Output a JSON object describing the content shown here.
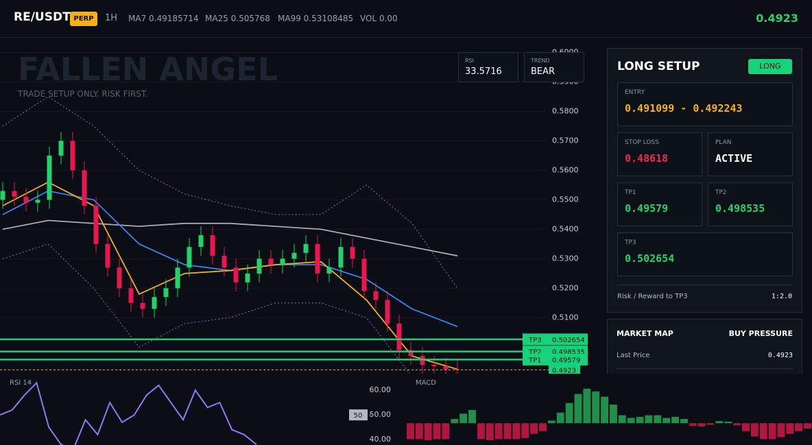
{
  "header": {
    "symbol": "RE/USDT",
    "badge": "PERP",
    "interval": "1H",
    "ma7": "MA7 0.49185714",
    "ma25": "MA25 0.505768",
    "ma99": "MA99 0.53108485",
    "volume": "VOL 0.00",
    "price": "0.4923"
  },
  "watermark": {
    "title": "FALLEN ANGEL",
    "subtitle": "TRADE SETUP ONLY. RISK FIRST."
  },
  "stats": [
    {
      "label": "RSI",
      "value": "33.5716"
    },
    {
      "label": "TREND",
      "value": "BEAR"
    }
  ],
  "chart_data": [
    {
      "type": "candlestick",
      "categories": [
        null,
        null,
        null,
        null,
        null,
        null,
        null,
        null,
        null,
        null,
        null,
        null,
        null,
        null,
        null,
        null,
        null,
        null,
        null,
        null,
        null,
        null,
        null,
        null,
        null,
        null,
        null,
        null,
        null,
        null,
        null,
        null,
        null,
        null,
        null,
        null,
        null,
        null,
        null,
        null
      ],
      "open": [
        0.55,
        0.553,
        0.551,
        0.549,
        0.55,
        0.565,
        0.57,
        0.56,
        0.548,
        0.535,
        0.527,
        0.52,
        0.515,
        0.513,
        0.517,
        0.52,
        0.527,
        0.534,
        0.538,
        0.531,
        0.527,
        0.522,
        0.525,
        0.53,
        0.528,
        0.53,
        0.532,
        0.535,
        0.525,
        0.527,
        0.534,
        0.53,
        0.519,
        0.516,
        0.508,
        0.499,
        0.497,
        0.494,
        0.4935,
        0.4925
      ],
      "high": [
        0.556,
        0.556,
        0.554,
        0.553,
        0.568,
        0.573,
        0.573,
        0.563,
        0.551,
        0.538,
        0.53,
        0.523,
        0.518,
        0.52,
        0.523,
        0.53,
        0.537,
        0.541,
        0.541,
        0.534,
        0.53,
        0.528,
        0.533,
        0.533,
        0.533,
        0.535,
        0.538,
        0.538,
        0.53,
        0.537,
        0.537,
        0.533,
        0.522,
        0.519,
        0.511,
        0.502,
        0.5,
        0.497,
        0.4965,
        0.4955
      ],
      "low": [
        0.547,
        0.548,
        0.546,
        0.546,
        0.547,
        0.562,
        0.557,
        0.545,
        0.532,
        0.524,
        0.517,
        0.512,
        0.51,
        0.51,
        0.514,
        0.517,
        0.524,
        0.531,
        0.528,
        0.524,
        0.519,
        0.519,
        0.522,
        0.525,
        0.525,
        0.527,
        0.529,
        0.522,
        0.522,
        0.524,
        0.527,
        0.516,
        0.513,
        0.505,
        0.496,
        0.494,
        0.491,
        0.4905,
        0.4895,
        0.4893
      ],
      "close": [
        0.553,
        0.551,
        0.549,
        0.55,
        0.565,
        0.57,
        0.56,
        0.548,
        0.535,
        0.527,
        0.52,
        0.515,
        0.513,
        0.517,
        0.52,
        0.527,
        0.534,
        0.538,
        0.531,
        0.527,
        0.522,
        0.525,
        0.53,
        0.528,
        0.53,
        0.532,
        0.535,
        0.525,
        0.527,
        0.534,
        0.53,
        0.519,
        0.516,
        0.508,
        0.499,
        0.497,
        0.494,
        0.4935,
        0.4925,
        0.4923
      ],
      "up_color": "#22d36b",
      "down_color": "#e8174f",
      "lines": [
        {
          "color": "#8a6cd8",
          "dashed": true,
          "values": [
            0.575,
            0.585,
            0.575,
            0.56,
            0.552,
            0.548,
            0.545,
            0.545,
            0.555,
            0.542,
            0.52
          ]
        },
        {
          "color": "#8a6cd8",
          "dashed": true,
          "values": [
            0.53,
            0.535,
            0.52,
            0.5,
            0.508,
            0.51,
            0.515,
            0.515,
            0.51,
            0.49,
            0.491
          ]
        },
        {
          "color": "#a9abb0",
          "dashed": false,
          "values": [
            0.54,
            0.543,
            0.542,
            0.541,
            0.542,
            0.542,
            0.541,
            0.54,
            0.537,
            0.534,
            0.531
          ]
        },
        {
          "color": "#3b82f6",
          "dashed": false,
          "values": [
            0.545,
            0.553,
            0.55,
            0.535,
            0.528,
            0.526,
            0.528,
            0.528,
            0.523,
            0.513,
            0.507
          ]
        },
        {
          "color": "#f5b014",
          "dashed": false,
          "values": [
            0.548,
            0.556,
            0.548,
            0.518,
            0.525,
            0.526,
            0.528,
            0.529,
            0.516,
            0.497,
            0.4925
          ]
        }
      ],
      "levels": [
        {
          "name": "TP3",
          "value": 0.502654
        },
        {
          "name": "TP2",
          "value": 0.498535
        },
        {
          "name": "TP1",
          "value": 0.49579
        }
      ],
      "last_price": 0.4923,
      "ylim": [
        0.491,
        0.605
      ],
      "yticks": [
        {
          "value": 0.6,
          "label": "0.6000"
        },
        {
          "value": 0.59,
          "label": "0.5900"
        },
        {
          "value": 0.58,
          "label": "0.5800"
        },
        {
          "value": 0.57,
          "label": "0.5700"
        },
        {
          "value": 0.56,
          "label": "0.5600"
        },
        {
          "value": 0.55,
          "label": "0.5500"
        },
        {
          "value": 0.54,
          "label": "0.5400"
        },
        {
          "value": 0.53,
          "label": "0.5300"
        },
        {
          "value": 0.52,
          "label": "0.5200"
        },
        {
          "value": 0.51,
          "label": "0.5100"
        }
      ],
      "grid": true
    },
    {
      "type": "line",
      "title": "RSI 14",
      "color": "#8b7cf6",
      "values": [
        50,
        52,
        58,
        63,
        45,
        38,
        36,
        48,
        42,
        55,
        47,
        50,
        58,
        62,
        55,
        48,
        60,
        53,
        55,
        44,
        42,
        38
      ],
      "reference": 50,
      "ylim": [
        37.8,
        66.7
      ],
      "yticks": [
        {
          "value": 60,
          "label": "60.00"
        },
        {
          "value": 50,
          "label": "50.00"
        },
        {
          "value": 40,
          "label": "40.00"
        }
      ]
    },
    {
      "type": "bar",
      "title": "MACD",
      "positive_color": "#1f8f4a",
      "negative_color": "#b0163f",
      "values": [
        -3,
        -3,
        -3.2,
        -3,
        -3,
        0.8,
        1.8,
        2.5,
        -3,
        -3.2,
        -3,
        -3,
        -3,
        -2.8,
        -2,
        -1.5,
        0.5,
        2,
        3.8,
        5.5,
        6.5,
        6,
        5,
        3.5,
        1.5,
        1,
        1.2,
        1.5,
        1.5,
        1,
        1.2,
        0.8,
        -0.5,
        -0.6,
        -0.3,
        0.4,
        0.3,
        -0.4,
        -1.5,
        -2.5,
        -3,
        -3,
        -2.6,
        -2,
        -1.5,
        -1
      ],
      "ylim": [
        -4.1,
        7
      ]
    }
  ],
  "setup": {
    "title": "LONG SETUP",
    "direction": "LONG",
    "entry": {
      "label": "ENTRY",
      "value": "0.491099 - 0.492243"
    },
    "stop_loss": {
      "label": "STOP LOSS",
      "value": "0.48618"
    },
    "plan": {
      "label": "PLAN",
      "value": "ACTIVE"
    },
    "tp1": {
      "label": "TP1",
      "value": "0.49579"
    },
    "tp2": {
      "label": "TP2",
      "value": "0.498535"
    },
    "tp3": {
      "label": "TP3",
      "value": "0.502654"
    },
    "risk_reward": {
      "label": "Risk / Reward to TP3",
      "value": "1:2.0"
    }
  },
  "market_map": {
    "title": "MARKET MAP",
    "status": "BUY PRESSURE",
    "last_price": {
      "label": "Last Price",
      "value": "0.4923"
    }
  }
}
